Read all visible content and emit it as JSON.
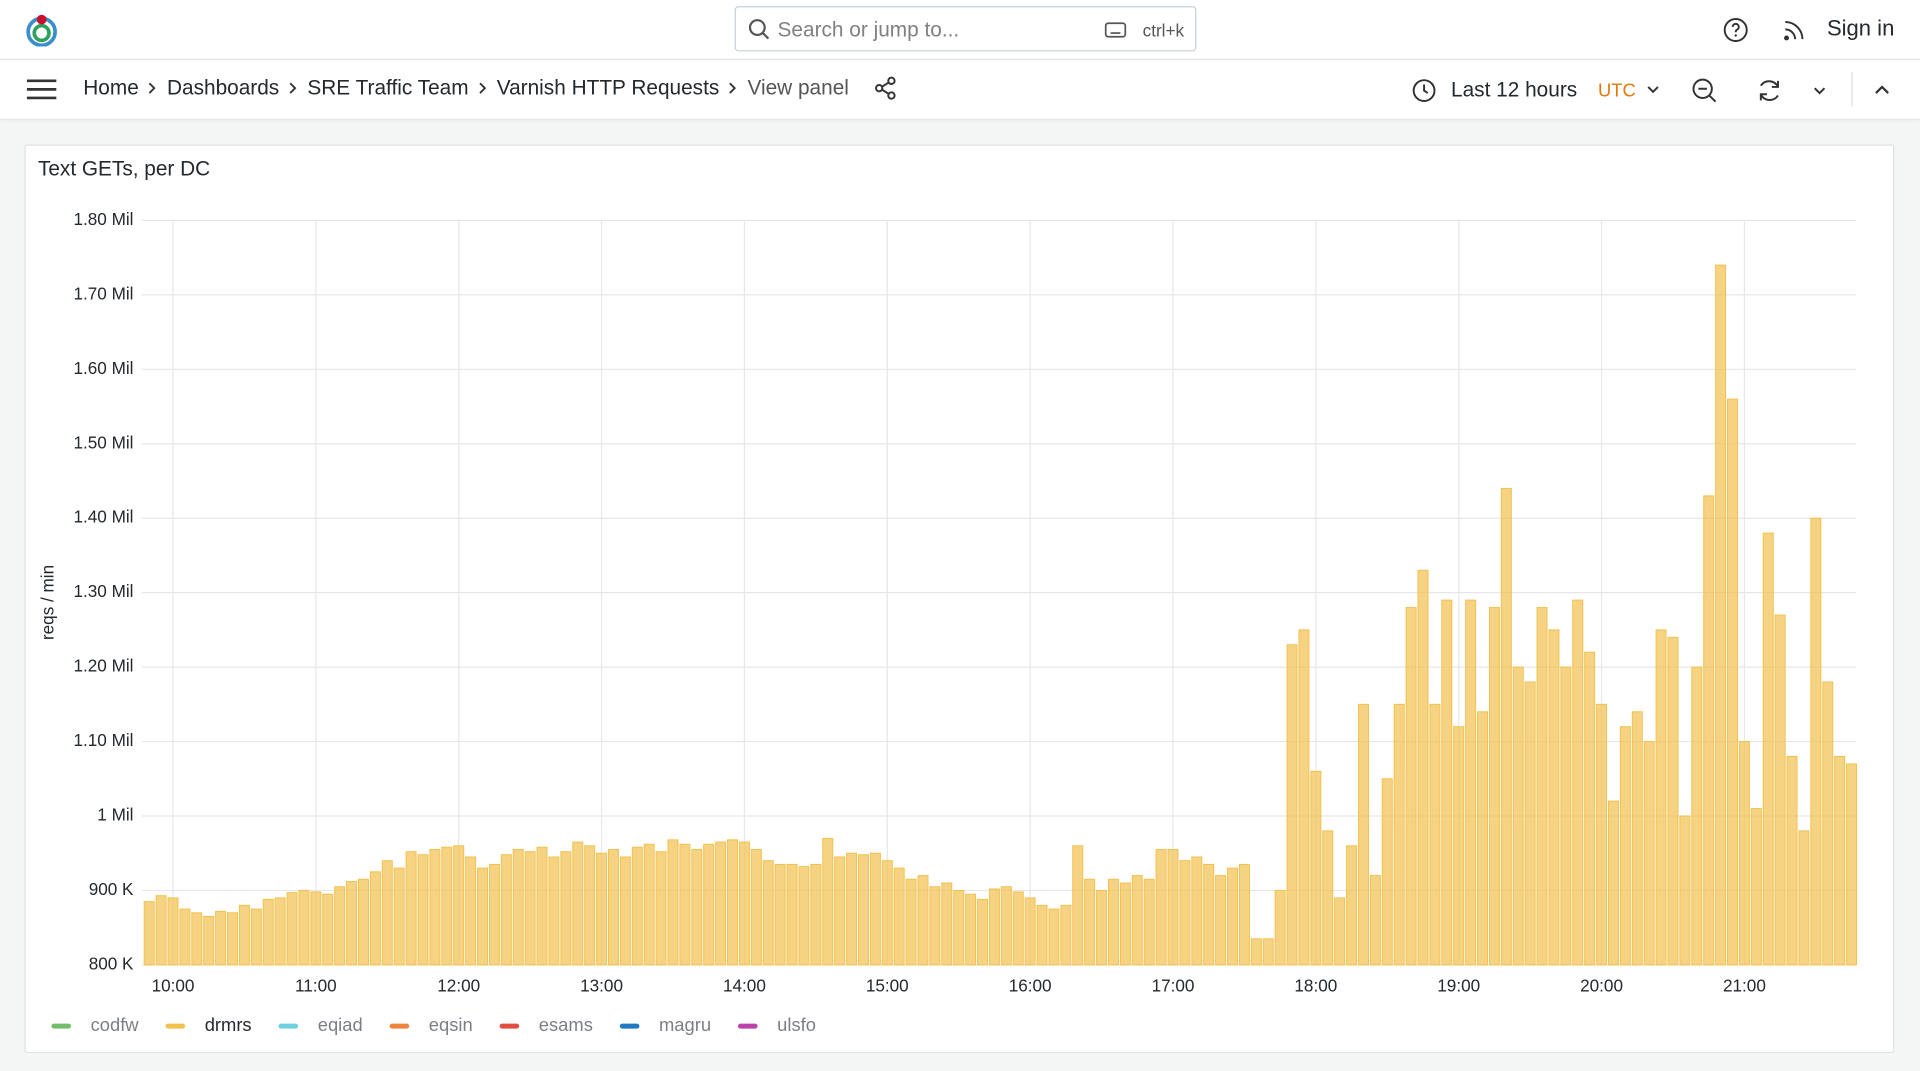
{
  "header": {
    "search_placeholder": "Search or jump to...",
    "shortcut": "ctrl+k",
    "sign_in": "Sign in"
  },
  "breadcrumbs": [
    "Home",
    "Dashboards",
    "SRE Traffic Team",
    "Varnish HTTP Requests",
    "View panel"
  ],
  "time_picker": {
    "range": "Last 12 hours",
    "timezone": "UTC"
  },
  "chart_data": {
    "type": "bar",
    "title": "Text GETs, per DC",
    "ylabel": "reqs / min",
    "x": [
      "09:50",
      "09:55",
      "10:00",
      "10:05",
      "10:10",
      "10:15",
      "10:20",
      "10:25",
      "10:30",
      "10:35",
      "10:40",
      "10:45",
      "10:50",
      "10:55",
      "11:00",
      "11:05",
      "11:10",
      "11:15",
      "11:20",
      "11:25",
      "11:30",
      "11:35",
      "11:40",
      "11:45",
      "11:50",
      "11:55",
      "12:00",
      "12:05",
      "12:10",
      "12:15",
      "12:20",
      "12:25",
      "12:30",
      "12:35",
      "12:40",
      "12:45",
      "12:50",
      "12:55",
      "13:00",
      "13:05",
      "13:10",
      "13:15",
      "13:20",
      "13:25",
      "13:30",
      "13:35",
      "13:40",
      "13:45",
      "13:50",
      "13:55",
      "14:00",
      "14:05",
      "14:10",
      "14:15",
      "14:20",
      "14:25",
      "14:30",
      "14:35",
      "14:40",
      "14:45",
      "14:50",
      "14:55",
      "15:00",
      "15:05",
      "15:10",
      "15:15",
      "15:20",
      "15:25",
      "15:30",
      "15:35",
      "15:40",
      "15:45",
      "15:50",
      "15:55",
      "16:00",
      "16:05",
      "16:10",
      "16:15",
      "16:20",
      "16:25",
      "16:30",
      "16:35",
      "16:40",
      "16:45",
      "16:50",
      "16:55",
      "17:00",
      "17:05",
      "17:10",
      "17:15",
      "17:20",
      "17:25",
      "17:30",
      "17:35",
      "17:40",
      "17:45",
      "17:50",
      "17:55",
      "18:00",
      "18:05",
      "18:10",
      "18:15",
      "18:20",
      "18:25",
      "18:30",
      "18:35",
      "18:40",
      "18:45",
      "18:50",
      "18:55",
      "19:00",
      "19:05",
      "19:10",
      "19:15",
      "19:20",
      "19:25",
      "19:30",
      "19:35",
      "19:40",
      "19:45",
      "19:50",
      "19:55",
      "20:00",
      "20:05",
      "20:10",
      "20:15",
      "20:20",
      "20:25",
      "20:30",
      "20:35",
      "20:40",
      "20:45",
      "20:50",
      "20:55",
      "21:00",
      "21:05",
      "21:10",
      "21:15",
      "21:20",
      "21:25",
      "21:30",
      "21:35",
      "21:40",
      "21:45"
    ],
    "series": [
      {
        "name": "codfw",
        "color": "#73bf69",
        "visible": false
      },
      {
        "name": "drmrs",
        "color": "#f2c14e",
        "visible": true,
        "values": [
          885000,
          893000,
          890000,
          875000,
          870000,
          865000,
          872000,
          870000,
          880000,
          875000,
          888000,
          890000,
          897000,
          900000,
          898000,
          895000,
          905000,
          912000,
          915000,
          925000,
          940000,
          930000,
          952000,
          948000,
          955000,
          958000,
          960000,
          945000,
          930000,
          935000,
          948000,
          955000,
          952000,
          958000,
          945000,
          952000,
          965000,
          960000,
          950000,
          955000,
          945000,
          958000,
          962000,
          952000,
          968000,
          962000,
          955000,
          962000,
          965000,
          968000,
          965000,
          955000,
          940000,
          935000,
          935000,
          932000,
          935000,
          970000,
          945000,
          950000,
          948000,
          950000,
          940000,
          930000,
          915000,
          920000,
          905000,
          910000,
          900000,
          895000,
          888000,
          902000,
          905000,
          898000,
          890000,
          880000,
          875000,
          880000,
          960000,
          915000,
          900000,
          915000,
          910000,
          920000,
          915000,
          955000,
          955000,
          940000,
          945000,
          935000,
          920000,
          930000,
          935000,
          835000,
          835000,
          900000,
          1230000,
          1250000,
          1060000,
          980000,
          890000,
          960000,
          1150000,
          920000,
          1050000,
          1150000,
          1280000,
          1330000,
          1150000,
          1290000,
          1120000,
          1290000,
          1140000,
          1280000,
          1440000,
          1200000,
          1180000,
          1280000,
          1250000,
          1200000,
          1290000,
          1220000,
          1150000,
          1020000,
          1120000,
          1140000,
          1100000,
          1250000,
          1240000,
          1000000,
          1200000,
          1430000,
          1740000,
          1560000,
          1100000,
          1010000,
          1380000,
          1270000,
          1080000,
          980000,
          1400000,
          1180000,
          1080000,
          1070000
        ]
      },
      {
        "name": "eqiad",
        "color": "#6ed0e0",
        "visible": false
      },
      {
        "name": "eqsin",
        "color": "#ef843c",
        "visible": false
      },
      {
        "name": "esams",
        "color": "#e24d42",
        "visible": false
      },
      {
        "name": "magru",
        "color": "#1f78c1",
        "visible": false
      },
      {
        "name": "ulsfo",
        "color": "#ba43a9",
        "visible": false
      }
    ],
    "xlim": [
      "09:47",
      "21:47"
    ],
    "xticks": [
      "10:00",
      "11:00",
      "12:00",
      "13:00",
      "14:00",
      "15:00",
      "16:00",
      "17:00",
      "18:00",
      "19:00",
      "20:00",
      "21:00"
    ],
    "ylim": [
      800000,
      1800000
    ],
    "yticks": [
      {
        "value": 800000,
        "label": "800 K"
      },
      {
        "value": 900000,
        "label": "900 K"
      },
      {
        "value": 1000000,
        "label": "1 Mil"
      },
      {
        "value": 1100000,
        "label": "1.10 Mil"
      },
      {
        "value": 1200000,
        "label": "1.20 Mil"
      },
      {
        "value": 1300000,
        "label": "1.30 Mil"
      },
      {
        "value": 1400000,
        "label": "1.40 Mil"
      },
      {
        "value": 1500000,
        "label": "1.50 Mil"
      },
      {
        "value": 1600000,
        "label": "1.60 Mil"
      },
      {
        "value": 1700000,
        "label": "1.70 Mil"
      },
      {
        "value": 1800000,
        "label": "1.80 Mil"
      }
    ],
    "grid": true
  }
}
